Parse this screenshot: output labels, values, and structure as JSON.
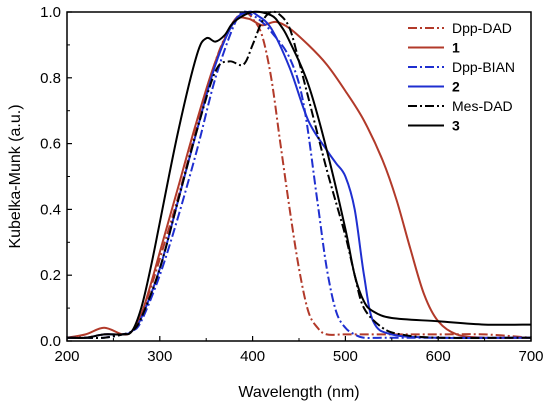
{
  "chart_data": {
    "type": "line",
    "xlabel": "Wavelength (nm)",
    "ylabel": "Kubelka-Munk (a.u.)",
    "xlim": [
      200,
      700
    ],
    "ylim": [
      0.0,
      1.0
    ],
    "xticks": [
      200,
      300,
      400,
      500,
      600,
      700
    ],
    "yticks": [
      0.0,
      0.2,
      0.4,
      0.6,
      0.8,
      1.0
    ],
    "grid": false,
    "legend_position": "top-right",
    "series": [
      {
        "name": "Dpp-DAD",
        "color": "#b23a2a",
        "dash": "dash-dot",
        "bold_label": false,
        "x": [
          200,
          220,
          240,
          260,
          270,
          280,
          290,
          300,
          320,
          340,
          360,
          375,
          385,
          392,
          400,
          410,
          420,
          430,
          440,
          450,
          460,
          470,
          480,
          500,
          550,
          600,
          650,
          700
        ],
        "y": [
          0.01,
          0.01,
          0.02,
          0.02,
          0.03,
          0.08,
          0.16,
          0.25,
          0.44,
          0.65,
          0.85,
          0.95,
          0.99,
          1.0,
          0.98,
          0.93,
          0.8,
          0.6,
          0.4,
          0.22,
          0.09,
          0.04,
          0.02,
          0.02,
          0.02,
          0.02,
          0.02,
          0.01
        ]
      },
      {
        "name": "1",
        "color": "#b23a2a",
        "dash": "solid",
        "bold_label": true,
        "x": [
          200,
          220,
          240,
          260,
          270,
          280,
          290,
          300,
          320,
          340,
          360,
          380,
          395,
          410,
          425,
          440,
          460,
          480,
          500,
          520,
          540,
          555,
          570,
          585,
          600,
          620,
          650,
          700
        ],
        "y": [
          0.01,
          0.02,
          0.04,
          0.02,
          0.03,
          0.08,
          0.17,
          0.27,
          0.47,
          0.67,
          0.85,
          0.97,
          0.98,
          0.96,
          0.97,
          0.95,
          0.9,
          0.84,
          0.76,
          0.67,
          0.55,
          0.43,
          0.28,
          0.14,
          0.06,
          0.02,
          0.01,
          0.01
        ]
      },
      {
        "name": "Dpp-BIAN",
        "color": "#1f2fd0",
        "dash": "dash-dot",
        "bold_label": false,
        "x": [
          200,
          220,
          240,
          260,
          270,
          280,
          300,
          320,
          340,
          360,
          380,
          390,
          400,
          410,
          420,
          440,
          455,
          470,
          480,
          490,
          500,
          510,
          520,
          540,
          560,
          600,
          700
        ],
        "y": [
          0.01,
          0.01,
          0.01,
          0.02,
          0.03,
          0.06,
          0.2,
          0.38,
          0.58,
          0.8,
          0.96,
          1.0,
          0.99,
          0.97,
          0.94,
          0.86,
          0.72,
          0.42,
          0.22,
          0.09,
          0.04,
          0.02,
          0.01,
          0.01,
          0.01,
          0.01,
          0.01
        ]
      },
      {
        "name": "2",
        "color": "#1f2fd0",
        "dash": "solid",
        "bold_label": true,
        "x": [
          200,
          220,
          240,
          260,
          270,
          280,
          300,
          320,
          340,
          360,
          380,
          395,
          405,
          420,
          440,
          460,
          480,
          490,
          500,
          510,
          520,
          530,
          550,
          600,
          700
        ],
        "y": [
          0.01,
          0.01,
          0.02,
          0.02,
          0.03,
          0.07,
          0.22,
          0.43,
          0.64,
          0.84,
          0.97,
          1.0,
          0.99,
          0.95,
          0.83,
          0.67,
          0.58,
          0.54,
          0.5,
          0.4,
          0.2,
          0.06,
          0.02,
          0.01,
          0.01
        ]
      },
      {
        "name": "Mes-DAD",
        "color": "#000000",
        "dash": "dash-dot",
        "bold_label": false,
        "x": [
          200,
          220,
          240,
          260,
          270,
          280,
          300,
          320,
          340,
          360,
          375,
          390,
          400,
          410,
          420,
          430,
          440,
          450,
          460,
          480,
          500,
          510,
          520,
          540,
          560,
          600,
          700
        ],
        "y": [
          0.01,
          0.01,
          0.01,
          0.02,
          0.03,
          0.07,
          0.22,
          0.43,
          0.64,
          0.82,
          0.85,
          0.84,
          0.9,
          0.97,
          1.0,
          0.99,
          0.95,
          0.85,
          0.74,
          0.52,
          0.32,
          0.2,
          0.1,
          0.04,
          0.02,
          0.01,
          0.01
        ]
      },
      {
        "name": "3",
        "color": "#000000",
        "dash": "solid",
        "bold_label": true,
        "x": [
          200,
          220,
          240,
          260,
          270,
          280,
          290,
          300,
          320,
          340,
          350,
          360,
          370,
          380,
          400,
          420,
          430,
          440,
          460,
          480,
          500,
          510,
          520,
          530,
          550,
          600,
          650,
          700
        ],
        "y": [
          0.01,
          0.01,
          0.02,
          0.02,
          0.03,
          0.1,
          0.22,
          0.36,
          0.64,
          0.87,
          0.92,
          0.91,
          0.93,
          0.97,
          1.0,
          0.99,
          0.96,
          0.91,
          0.78,
          0.58,
          0.34,
          0.2,
          0.12,
          0.09,
          0.07,
          0.06,
          0.05,
          0.05
        ]
      }
    ]
  }
}
